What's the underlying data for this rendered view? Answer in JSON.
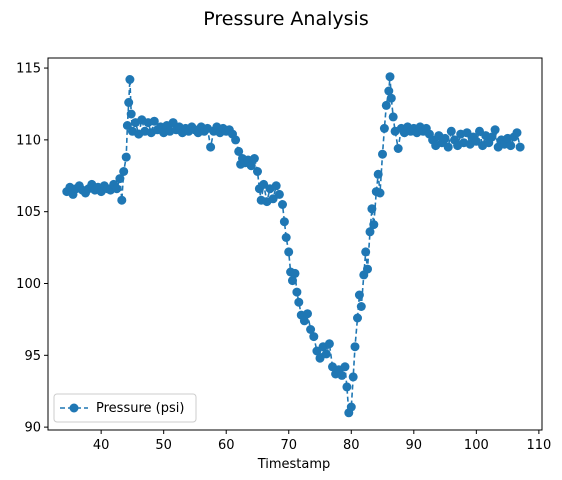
{
  "chart_data": {
    "type": "line",
    "title": "Pressure Analysis",
    "xlabel": "Timestamp",
    "ylabel": "",
    "xlim": [
      31.5,
      110.5
    ],
    "ylim": [
      89.8,
      115.7
    ],
    "xticks": [
      40,
      50,
      60,
      70,
      80,
      90,
      100,
      110
    ],
    "yticks": [
      90,
      95,
      100,
      105,
      110,
      115
    ],
    "grid": false,
    "legend_position": "lower-left",
    "marker": "circle",
    "line_style": "dashed",
    "series": [
      {
        "name": "Pressure (psi)",
        "color": "#1f77b4",
        "points": [
          [
            34.5,
            106.4
          ],
          [
            35.0,
            106.7
          ],
          [
            35.5,
            106.2
          ],
          [
            36.0,
            106.6
          ],
          [
            36.5,
            106.8
          ],
          [
            37.0,
            106.5
          ],
          [
            37.5,
            106.3
          ],
          [
            38.0,
            106.6
          ],
          [
            38.5,
            106.9
          ],
          [
            39.0,
            106.5
          ],
          [
            39.5,
            106.7
          ],
          [
            40.0,
            106.4
          ],
          [
            40.5,
            106.8
          ],
          [
            41.0,
            106.6
          ],
          [
            41.5,
            106.5
          ],
          [
            42.0,
            106.9
          ],
          [
            42.5,
            106.6
          ],
          [
            43.0,
            107.3
          ],
          [
            43.3,
            105.8
          ],
          [
            43.6,
            107.8
          ],
          [
            44.0,
            108.8
          ],
          [
            44.2,
            111.0
          ],
          [
            44.4,
            112.6
          ],
          [
            44.6,
            114.2
          ],
          [
            44.8,
            111.8
          ],
          [
            45.0,
            110.6
          ],
          [
            45.5,
            111.2
          ],
          [
            46.0,
            110.4
          ],
          [
            46.5,
            111.4
          ],
          [
            47.0,
            110.6
          ],
          [
            47.5,
            111.2
          ],
          [
            48.0,
            110.5
          ],
          [
            48.5,
            111.3
          ],
          [
            49.0,
            110.7
          ],
          [
            49.5,
            110.9
          ],
          [
            50.0,
            110.5
          ],
          [
            50.5,
            111.0
          ],
          [
            51.0,
            110.6
          ],
          [
            51.5,
            111.2
          ],
          [
            52.0,
            110.7
          ],
          [
            52.5,
            110.9
          ],
          [
            53.0,
            110.5
          ],
          [
            53.5,
            110.8
          ],
          [
            54.0,
            110.6
          ],
          [
            54.5,
            110.9
          ],
          [
            55.0,
            110.7
          ],
          [
            55.5,
            110.5
          ],
          [
            56.0,
            110.9
          ],
          [
            56.5,
            110.6
          ],
          [
            57.0,
            110.8
          ],
          [
            57.5,
            109.5
          ],
          [
            58.0,
            110.6
          ],
          [
            58.5,
            110.9
          ],
          [
            59.0,
            110.5
          ],
          [
            59.5,
            110.8
          ],
          [
            60.0,
            110.6
          ],
          [
            60.5,
            110.7
          ],
          [
            61.0,
            110.4
          ],
          [
            61.5,
            110.0
          ],
          [
            62.0,
            109.2
          ],
          [
            62.3,
            108.3
          ],
          [
            62.6,
            108.7
          ],
          [
            63.0,
            108.4
          ],
          [
            63.5,
            108.6
          ],
          [
            64.0,
            108.2
          ],
          [
            64.5,
            108.7
          ],
          [
            65.0,
            107.8
          ],
          [
            65.3,
            106.6
          ],
          [
            65.6,
            105.8
          ],
          [
            66.0,
            106.9
          ],
          [
            66.5,
            105.7
          ],
          [
            67.0,
            106.6
          ],
          [
            67.5,
            105.9
          ],
          [
            68.0,
            106.8
          ],
          [
            68.5,
            106.2
          ],
          [
            69.0,
            105.5
          ],
          [
            69.3,
            104.3
          ],
          [
            69.6,
            103.2
          ],
          [
            70.0,
            102.2
          ],
          [
            70.3,
            100.8
          ],
          [
            70.6,
            100.2
          ],
          [
            71.0,
            100.7
          ],
          [
            71.3,
            99.4
          ],
          [
            71.6,
            98.7
          ],
          [
            72.0,
            97.8
          ],
          [
            72.5,
            97.4
          ],
          [
            73.0,
            97.9
          ],
          [
            73.5,
            96.8
          ],
          [
            74.0,
            96.3
          ],
          [
            74.5,
            95.3
          ],
          [
            75.0,
            94.8
          ],
          [
            75.5,
            95.6
          ],
          [
            76.0,
            95.1
          ],
          [
            76.5,
            95.8
          ],
          [
            77.0,
            94.2
          ],
          [
            77.5,
            93.7
          ],
          [
            78.0,
            94.0
          ],
          [
            78.5,
            93.6
          ],
          [
            79.0,
            94.2
          ],
          [
            79.3,
            92.8
          ],
          [
            79.6,
            91.0
          ],
          [
            80.0,
            91.4
          ],
          [
            80.3,
            93.5
          ],
          [
            80.6,
            95.6
          ],
          [
            81.0,
            97.6
          ],
          [
            81.3,
            99.2
          ],
          [
            81.6,
            98.4
          ],
          [
            82.0,
            100.6
          ],
          [
            82.3,
            102.2
          ],
          [
            82.6,
            101.0
          ],
          [
            83.0,
            103.6
          ],
          [
            83.3,
            105.2
          ],
          [
            83.6,
            104.1
          ],
          [
            84.0,
            106.4
          ],
          [
            84.3,
            107.6
          ],
          [
            84.6,
            106.3
          ],
          [
            85.0,
            109.0
          ],
          [
            85.3,
            110.8
          ],
          [
            85.6,
            112.4
          ],
          [
            86.0,
            113.4
          ],
          [
            86.2,
            114.4
          ],
          [
            86.4,
            112.9
          ],
          [
            86.7,
            111.6
          ],
          [
            87.0,
            110.6
          ],
          [
            87.5,
            109.4
          ],
          [
            88.0,
            110.8
          ],
          [
            88.5,
            110.5
          ],
          [
            89.0,
            110.9
          ],
          [
            89.5,
            110.6
          ],
          [
            90.0,
            110.8
          ],
          [
            90.5,
            110.5
          ],
          [
            91.0,
            110.9
          ],
          [
            91.5,
            110.6
          ],
          [
            92.0,
            110.8
          ],
          [
            92.5,
            110.4
          ],
          [
            93.0,
            110.0
          ],
          [
            93.5,
            109.6
          ],
          [
            94.0,
            110.3
          ],
          [
            94.5,
            109.8
          ],
          [
            95.0,
            110.1
          ],
          [
            95.5,
            109.5
          ],
          [
            96.0,
            110.6
          ],
          [
            96.5,
            110.0
          ],
          [
            97.0,
            109.6
          ],
          [
            97.5,
            110.4
          ],
          [
            98.0,
            109.8
          ],
          [
            98.5,
            110.5
          ],
          [
            99.0,
            109.7
          ],
          [
            99.5,
            110.2
          ],
          [
            100.0,
            109.9
          ],
          [
            100.5,
            110.6
          ],
          [
            101.0,
            109.6
          ],
          [
            101.5,
            110.3
          ],
          [
            102.0,
            109.8
          ],
          [
            102.5,
            110.2
          ],
          [
            103.0,
            110.7
          ],
          [
            103.5,
            109.5
          ],
          [
            104.0,
            110.0
          ],
          [
            104.5,
            109.7
          ],
          [
            105.0,
            110.1
          ],
          [
            105.5,
            109.6
          ],
          [
            106.0,
            110.2
          ],
          [
            106.5,
            110.5
          ],
          [
            107.0,
            109.5
          ]
        ]
      }
    ]
  }
}
